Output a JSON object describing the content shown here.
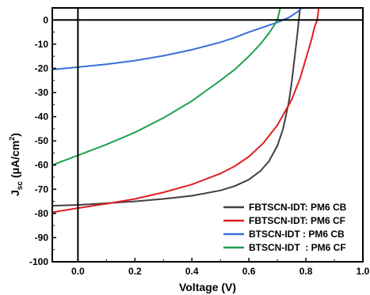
{
  "chart_data": {
    "type": "line",
    "xlabel": "Voltage (V)",
    "ylabel_main": "J",
    "ylabel_sub": "sc",
    "ylabel_units": " (μA/cm",
    "ylabel_sup": "2",
    "ylabel_end": ")",
    "xlim": [
      -0.09,
      1.0
    ],
    "ylim": [
      -100,
      5
    ],
    "xticks": [
      0.0,
      0.2,
      0.4,
      0.6,
      0.8,
      1.0
    ],
    "xtick_labels": [
      "0.0",
      "0.2",
      "0.4",
      "0.6",
      "0.8",
      "1.0"
    ],
    "yticks": [
      0,
      -10,
      -20,
      -30,
      -40,
      -50,
      -60,
      -70,
      -80,
      -90,
      -100
    ],
    "ytick_labels": [
      "0",
      "-10",
      "-20",
      "-30",
      "-40",
      "-50",
      "-60",
      "-70",
      "-80",
      "-90",
      "-100"
    ],
    "grid": false,
    "legend_position": "bottom-right",
    "series": [
      {
        "name": "FBTSCN-IDT: PM6 CB",
        "color": "#404040",
        "points": [
          [
            -0.09,
            -76.8
          ],
          [
            0.0,
            -76.5
          ],
          [
            0.1,
            -75.8
          ],
          [
            0.2,
            -75.0
          ],
          [
            0.3,
            -74.0
          ],
          [
            0.4,
            -72.7
          ],
          [
            0.5,
            -70.5
          ],
          [
            0.55,
            -68.7
          ],
          [
            0.6,
            -66.0
          ],
          [
            0.64,
            -62.5
          ],
          [
            0.67,
            -58.5
          ],
          [
            0.7,
            -52.0
          ],
          [
            0.72,
            -45.0
          ],
          [
            0.74,
            -34.0
          ],
          [
            0.75,
            -26.0
          ],
          [
            0.76,
            -16.0
          ],
          [
            0.77,
            -6.0
          ],
          [
            0.775,
            0.0
          ],
          [
            0.78,
            5.0
          ]
        ]
      },
      {
        "name": "FBTSCN-IDT: PM6 CF",
        "color": "#e02020",
        "points": [
          [
            -0.09,
            -79.5
          ],
          [
            0.0,
            -77.8
          ],
          [
            0.1,
            -76.0
          ],
          [
            0.2,
            -74.0
          ],
          [
            0.3,
            -71.3
          ],
          [
            0.4,
            -68.0
          ],
          [
            0.5,
            -63.5
          ],
          [
            0.55,
            -60.5
          ],
          [
            0.6,
            -56.5
          ],
          [
            0.65,
            -51.0
          ],
          [
            0.7,
            -43.5
          ],
          [
            0.75,
            -33.0
          ],
          [
            0.78,
            -24.0
          ],
          [
            0.8,
            -16.0
          ],
          [
            0.82,
            -8.0
          ],
          [
            0.83,
            -3.0
          ],
          [
            0.84,
            0.0
          ],
          [
            0.845,
            5.0
          ]
        ]
      },
      {
        "name": "BTSCN-IDT : PM6 CB",
        "color": "#3a6fd8",
        "points": [
          [
            -0.09,
            -20.5
          ],
          [
            0.0,
            -19.5
          ],
          [
            0.1,
            -18.3
          ],
          [
            0.2,
            -16.8
          ],
          [
            0.3,
            -14.8
          ],
          [
            0.4,
            -12.3
          ],
          [
            0.5,
            -9.2
          ],
          [
            0.55,
            -7.3
          ],
          [
            0.6,
            -5.0
          ],
          [
            0.65,
            -3.0
          ],
          [
            0.7,
            -1.0
          ],
          [
            0.74,
            1.0
          ],
          [
            0.77,
            3.3
          ],
          [
            0.785,
            5.0
          ]
        ]
      },
      {
        "name": "BTSCN-IDT  : PM6 CF",
        "color": "#20a050",
        "points": [
          [
            -0.09,
            -60.0
          ],
          [
            0.0,
            -56.0
          ],
          [
            0.1,
            -51.5
          ],
          [
            0.2,
            -46.5
          ],
          [
            0.3,
            -40.5
          ],
          [
            0.4,
            -33.5
          ],
          [
            0.5,
            -25.0
          ],
          [
            0.55,
            -20.5
          ],
          [
            0.6,
            -15.0
          ],
          [
            0.64,
            -10.0
          ],
          [
            0.67,
            -5.5
          ],
          [
            0.69,
            -2.0
          ],
          [
            0.7,
            0.0
          ],
          [
            0.71,
            5.0
          ]
        ]
      }
    ]
  }
}
